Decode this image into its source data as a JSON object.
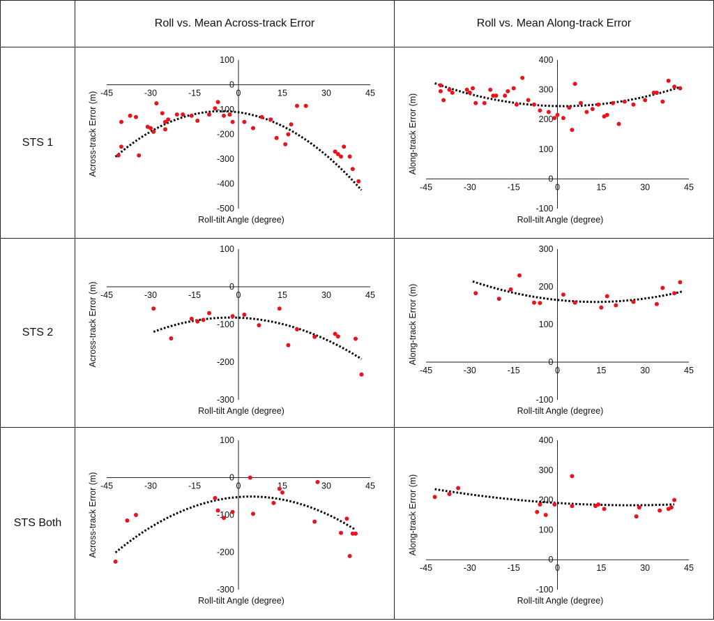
{
  "headers": {
    "corner": "",
    "across": "Roll vs. Mean Across-track Error",
    "along": "Roll vs. Mean Along-track Error"
  },
  "rows": [
    {
      "label": "STS 1"
    },
    {
      "label": "STS 2"
    },
    {
      "label": "STS Both"
    }
  ],
  "colors": {
    "points": "#e8141b",
    "trend": "#000000",
    "axis": "#222222",
    "border": "#222222"
  },
  "chart_data": [
    {
      "id": "sts1-across",
      "type": "scatter",
      "title": "",
      "xlabel": "Roll-tilt Angle (degree)",
      "ylabel": "Across-track Error (m)",
      "xlim": [
        -45,
        45
      ],
      "ylim": [
        -500,
        100
      ],
      "xticks": [
        "-45",
        "-30",
        "-15",
        "0",
        "15",
        "30",
        "45"
      ],
      "yticks": [
        "100",
        "0",
        "-100",
        "-200",
        "-300",
        "-400",
        "-500"
      ],
      "x": [
        -41,
        -40,
        -40,
        -37,
        -35,
        -34,
        -31,
        -30,
        -29,
        -28,
        -26,
        -25,
        -25,
        -24,
        -21,
        -19,
        -16,
        -14,
        -10,
        -8,
        -7,
        -5,
        -3,
        -2,
        2,
        5,
        8,
        11,
        13,
        16,
        17,
        18,
        20,
        23,
        33,
        34,
        35,
        36,
        38,
        39,
        41
      ],
      "y": [
        -285,
        -250,
        -150,
        -125,
        -130,
        -285,
        -170,
        -175,
        -190,
        -75,
        -115,
        -150,
        -180,
        -140,
        -120,
        -120,
        -125,
        -145,
        -120,
        -95,
        -70,
        -125,
        -120,
        -150,
        -150,
        -175,
        -130,
        -140,
        -215,
        -240,
        -200,
        -160,
        -85,
        -85,
        -270,
        -280,
        -290,
        -250,
        -290,
        -340,
        -390
      ],
      "trend": {
        "type": "poly2",
        "xrange": [
          -42,
          42
        ],
        "a": -0.14,
        "b": -1.6,
        "c": -111
      }
    },
    {
      "id": "sts1-along",
      "type": "scatter",
      "title": "",
      "xlabel": "Roll-tilt Angle (degree)",
      "ylabel": "Along-track Error (m)",
      "xlim": [
        -45,
        45
      ],
      "ylim": [
        -100,
        400
      ],
      "xticks": [
        "-45",
        "-30",
        "-15",
        "0",
        "15",
        "30",
        "45"
      ],
      "yticks": [
        "400",
        "300",
        "200",
        "100",
        "0",
        "-100"
      ],
      "x": [
        -40,
        -40,
        -39,
        -37,
        -36,
        -31,
        -30,
        -29,
        -28,
        -25,
        -23,
        -22,
        -21,
        -18,
        -17,
        -15,
        -14,
        -12,
        -10,
        -8,
        -6,
        -3,
        -1,
        0,
        2,
        4,
        5,
        6,
        8,
        10,
        12,
        14,
        16,
        17,
        19,
        21,
        23,
        26,
        30,
        33,
        34,
        36,
        38,
        40,
        42
      ],
      "y": [
        315,
        295,
        265,
        300,
        290,
        300,
        290,
        305,
        255,
        255,
        300,
        280,
        280,
        280,
        295,
        305,
        250,
        340,
        265,
        250,
        230,
        225,
        205,
        215,
        205,
        240,
        165,
        320,
        255,
        225,
        235,
        250,
        210,
        215,
        255,
        185,
        260,
        250,
        265,
        290,
        290,
        260,
        330,
        310,
        305
      ],
      "trend": {
        "type": "poly2",
        "xrange": [
          -42,
          42
        ],
        "a": 0.04,
        "b": -0.15,
        "c": 245
      }
    },
    {
      "id": "sts2-across",
      "type": "scatter",
      "title": "",
      "xlabel": "Roll-tilt Angle (degree)",
      "ylabel": "Across-track Error (m)",
      "xlim": [
        -45,
        45
      ],
      "ylim": [
        -300,
        100
      ],
      "xticks": [
        "-45",
        "-30",
        "-15",
        "0",
        "15",
        "30",
        "45"
      ],
      "yticks": [
        "100",
        "0",
        "-100",
        "-200",
        "-300"
      ],
      "x": [
        -29,
        -23,
        -16,
        -14,
        -12,
        -10,
        -2,
        2,
        7,
        14,
        17,
        20,
        26,
        33,
        34,
        40,
        42
      ],
      "y": [
        -58,
        -137,
        -85,
        -92,
        -88,
        -70,
        -78,
        -74,
        -102,
        -58,
        -155,
        -113,
        -133,
        -125,
        -132,
        -138,
        -233
      ],
      "trend": {
        "type": "poly2",
        "xrange": [
          -29,
          42
        ],
        "a": -0.055,
        "b": -0.3,
        "c": -82
      }
    },
    {
      "id": "sts2-along",
      "type": "scatter",
      "title": "",
      "xlabel": "Roll-tilt Angle (degree)",
      "ylabel": "Along-track Error (m)",
      "xlim": [
        -45,
        45
      ],
      "ylim": [
        -100,
        300
      ],
      "xticks": [
        "-45",
        "-30",
        "-15",
        "0",
        "15",
        "30",
        "45"
      ],
      "yticks": [
        "300",
        "200",
        "100",
        "0",
        "-100"
      ],
      "x": [
        -28,
        -20,
        -16,
        -13,
        -8,
        -6,
        2,
        6,
        15,
        17,
        20,
        26,
        34,
        36,
        40,
        42
      ],
      "y": [
        183,
        168,
        193,
        230,
        158,
        157,
        179,
        158,
        145,
        175,
        151,
        160,
        154,
        197,
        183,
        212
      ],
      "trend": {
        "type": "poly2",
        "xrange": [
          -29,
          43
        ],
        "a": 0.031,
        "b": -0.8,
        "c": 165
      }
    },
    {
      "id": "both-across",
      "type": "scatter",
      "title": "",
      "xlabel": "Roll-tilt Angle (degree)",
      "ylabel": "Across-track Error (m)",
      "xlim": [
        -45,
        45
      ],
      "ylim": [
        -300,
        100
      ],
      "xticks": [
        "-45",
        "-30",
        "-15",
        "0",
        "15",
        "30",
        "45"
      ],
      "yticks": [
        "100",
        "0",
        "-100",
        "-200",
        "-300"
      ],
      "x": [
        -42,
        -38,
        -35,
        -8,
        -7,
        -5,
        -2,
        4,
        5,
        12,
        14,
        15,
        26,
        27,
        35,
        37,
        38,
        39,
        40
      ],
      "y": [
        -225,
        -115,
        -100,
        -55,
        -88,
        -108,
        -92,
        0,
        -97,
        -68,
        -30,
        -40,
        -118,
        -12,
        -148,
        -110,
        -210,
        -150,
        -150
      ],
      "trend": {
        "type": "poly2",
        "xrange": [
          -42,
          40
        ],
        "a": -0.07,
        "b": 0.6,
        "c": -52
      }
    },
    {
      "id": "both-along",
      "type": "scatter",
      "title": "",
      "xlabel": "Roll-tilt Angle (degree)",
      "ylabel": "Along-track Error (m)",
      "xlim": [
        -45,
        45
      ],
      "ylim": [
        -100,
        400
      ],
      "xticks": [
        "-45",
        "-30",
        "-15",
        "0",
        "15",
        "30",
        "45"
      ],
      "yticks": [
        "400",
        "300",
        "200",
        "100",
        "0",
        "-100"
      ],
      "x": [
        -42,
        -37,
        -34,
        -7,
        -6,
        -4,
        -1,
        5,
        5,
        13,
        14,
        16,
        27,
        28,
        35,
        38,
        39,
        40
      ],
      "y": [
        210,
        220,
        240,
        160,
        185,
        150,
        185,
        180,
        280,
        180,
        185,
        170,
        145,
        175,
        165,
        170,
        175,
        200
      ],
      "trend": {
        "type": "poly2",
        "xrange": [
          -42,
          40
        ],
        "a": 0.012,
        "b": -0.6,
        "c": 190
      }
    }
  ]
}
